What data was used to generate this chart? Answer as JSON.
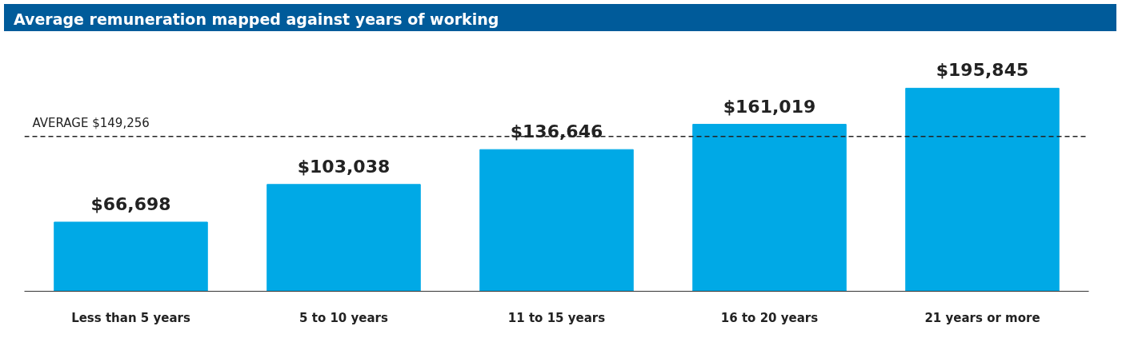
{
  "chart_data": {
    "type": "bar",
    "title": "Average remuneration mapped against years of working",
    "categories": [
      "Less than 5 years",
      "5 to 10 years",
      "11 to 15 years",
      "16 to 20 years",
      "21 years or more"
    ],
    "values": [
      66698,
      103038,
      136646,
      161019,
      195845
    ],
    "value_labels": [
      "$66,698",
      "$103,038",
      "$136,646",
      "$161,019",
      "$195,845"
    ],
    "color": "#00a9e6",
    "ref_lines": [
      {
        "axis": "y",
        "value": 149256,
        "label": "AVERAGE $149,256",
        "color": "#222222",
        "line_style": "dashed"
      }
    ]
  }
}
